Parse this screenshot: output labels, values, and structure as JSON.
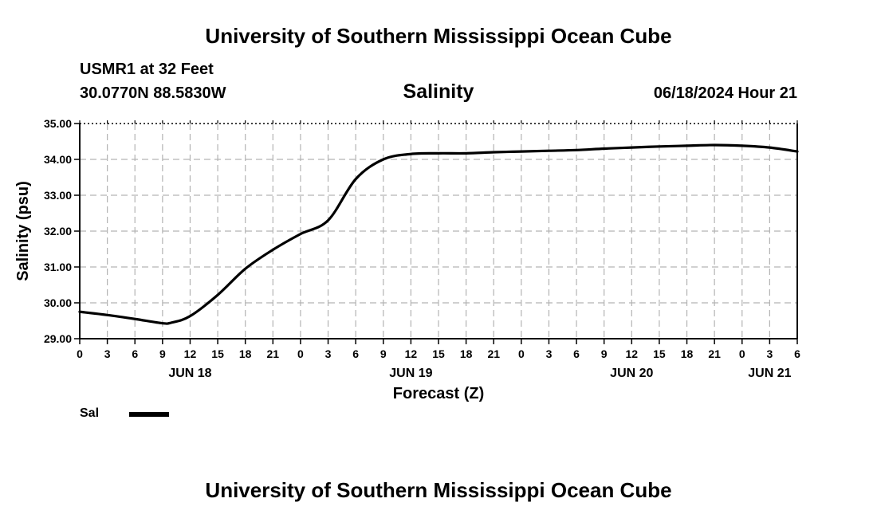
{
  "header": {
    "title": "University of Southern Mississippi Ocean Cube",
    "station": "USMR1 at 32 Feet",
    "coords": "30.0770N  88.5830W",
    "subtitle": "Salinity",
    "datetime": "06/18/2024 Hour 21"
  },
  "legend": {
    "label": "Sal"
  },
  "footer": {
    "title": "University of Southern Mississippi Ocean Cube"
  },
  "chart_data": {
    "type": "line",
    "title": "Salinity",
    "xlabel": "Forecast (Z)",
    "ylabel": "Salinity (psu)",
    "ylim": [
      29.0,
      35.0
    ],
    "yticks": [
      "29.00",
      "30.00",
      "31.00",
      "32.00",
      "33.00",
      "34.00",
      "35.00"
    ],
    "xlim": [
      0,
      78
    ],
    "xtick_step_hours": 3,
    "xtick_labels": [
      "0",
      "3",
      "6",
      "9",
      "12",
      "15",
      "18",
      "21",
      "0",
      "3",
      "6",
      "9",
      "12",
      "15",
      "18",
      "21",
      "0",
      "3",
      "6",
      "9",
      "12",
      "15",
      "18",
      "21",
      "0",
      "3",
      "6"
    ],
    "day_labels": [
      {
        "label": "JUN 18",
        "hour": 12
      },
      {
        "label": "JUN 19",
        "hour": 36
      },
      {
        "label": "JUN 20",
        "hour": 60
      },
      {
        "label": "JUN 21",
        "hour": 75
      }
    ],
    "grid": true,
    "series": [
      {
        "name": "Sal",
        "x": [
          0,
          3,
          6,
          9,
          10,
          12,
          15,
          18,
          21,
          24,
          27,
          30,
          33,
          36,
          39,
          42,
          45,
          48,
          51,
          54,
          57,
          60,
          63,
          66,
          69,
          72,
          75,
          78
        ],
        "values": [
          29.75,
          29.66,
          29.55,
          29.43,
          29.45,
          29.63,
          30.22,
          30.95,
          31.48,
          31.92,
          32.3,
          33.45,
          34.0,
          34.15,
          34.17,
          34.17,
          34.2,
          34.22,
          34.24,
          34.26,
          34.3,
          34.33,
          34.36,
          34.38,
          34.4,
          34.38,
          34.33,
          34.22
        ]
      }
    ]
  }
}
